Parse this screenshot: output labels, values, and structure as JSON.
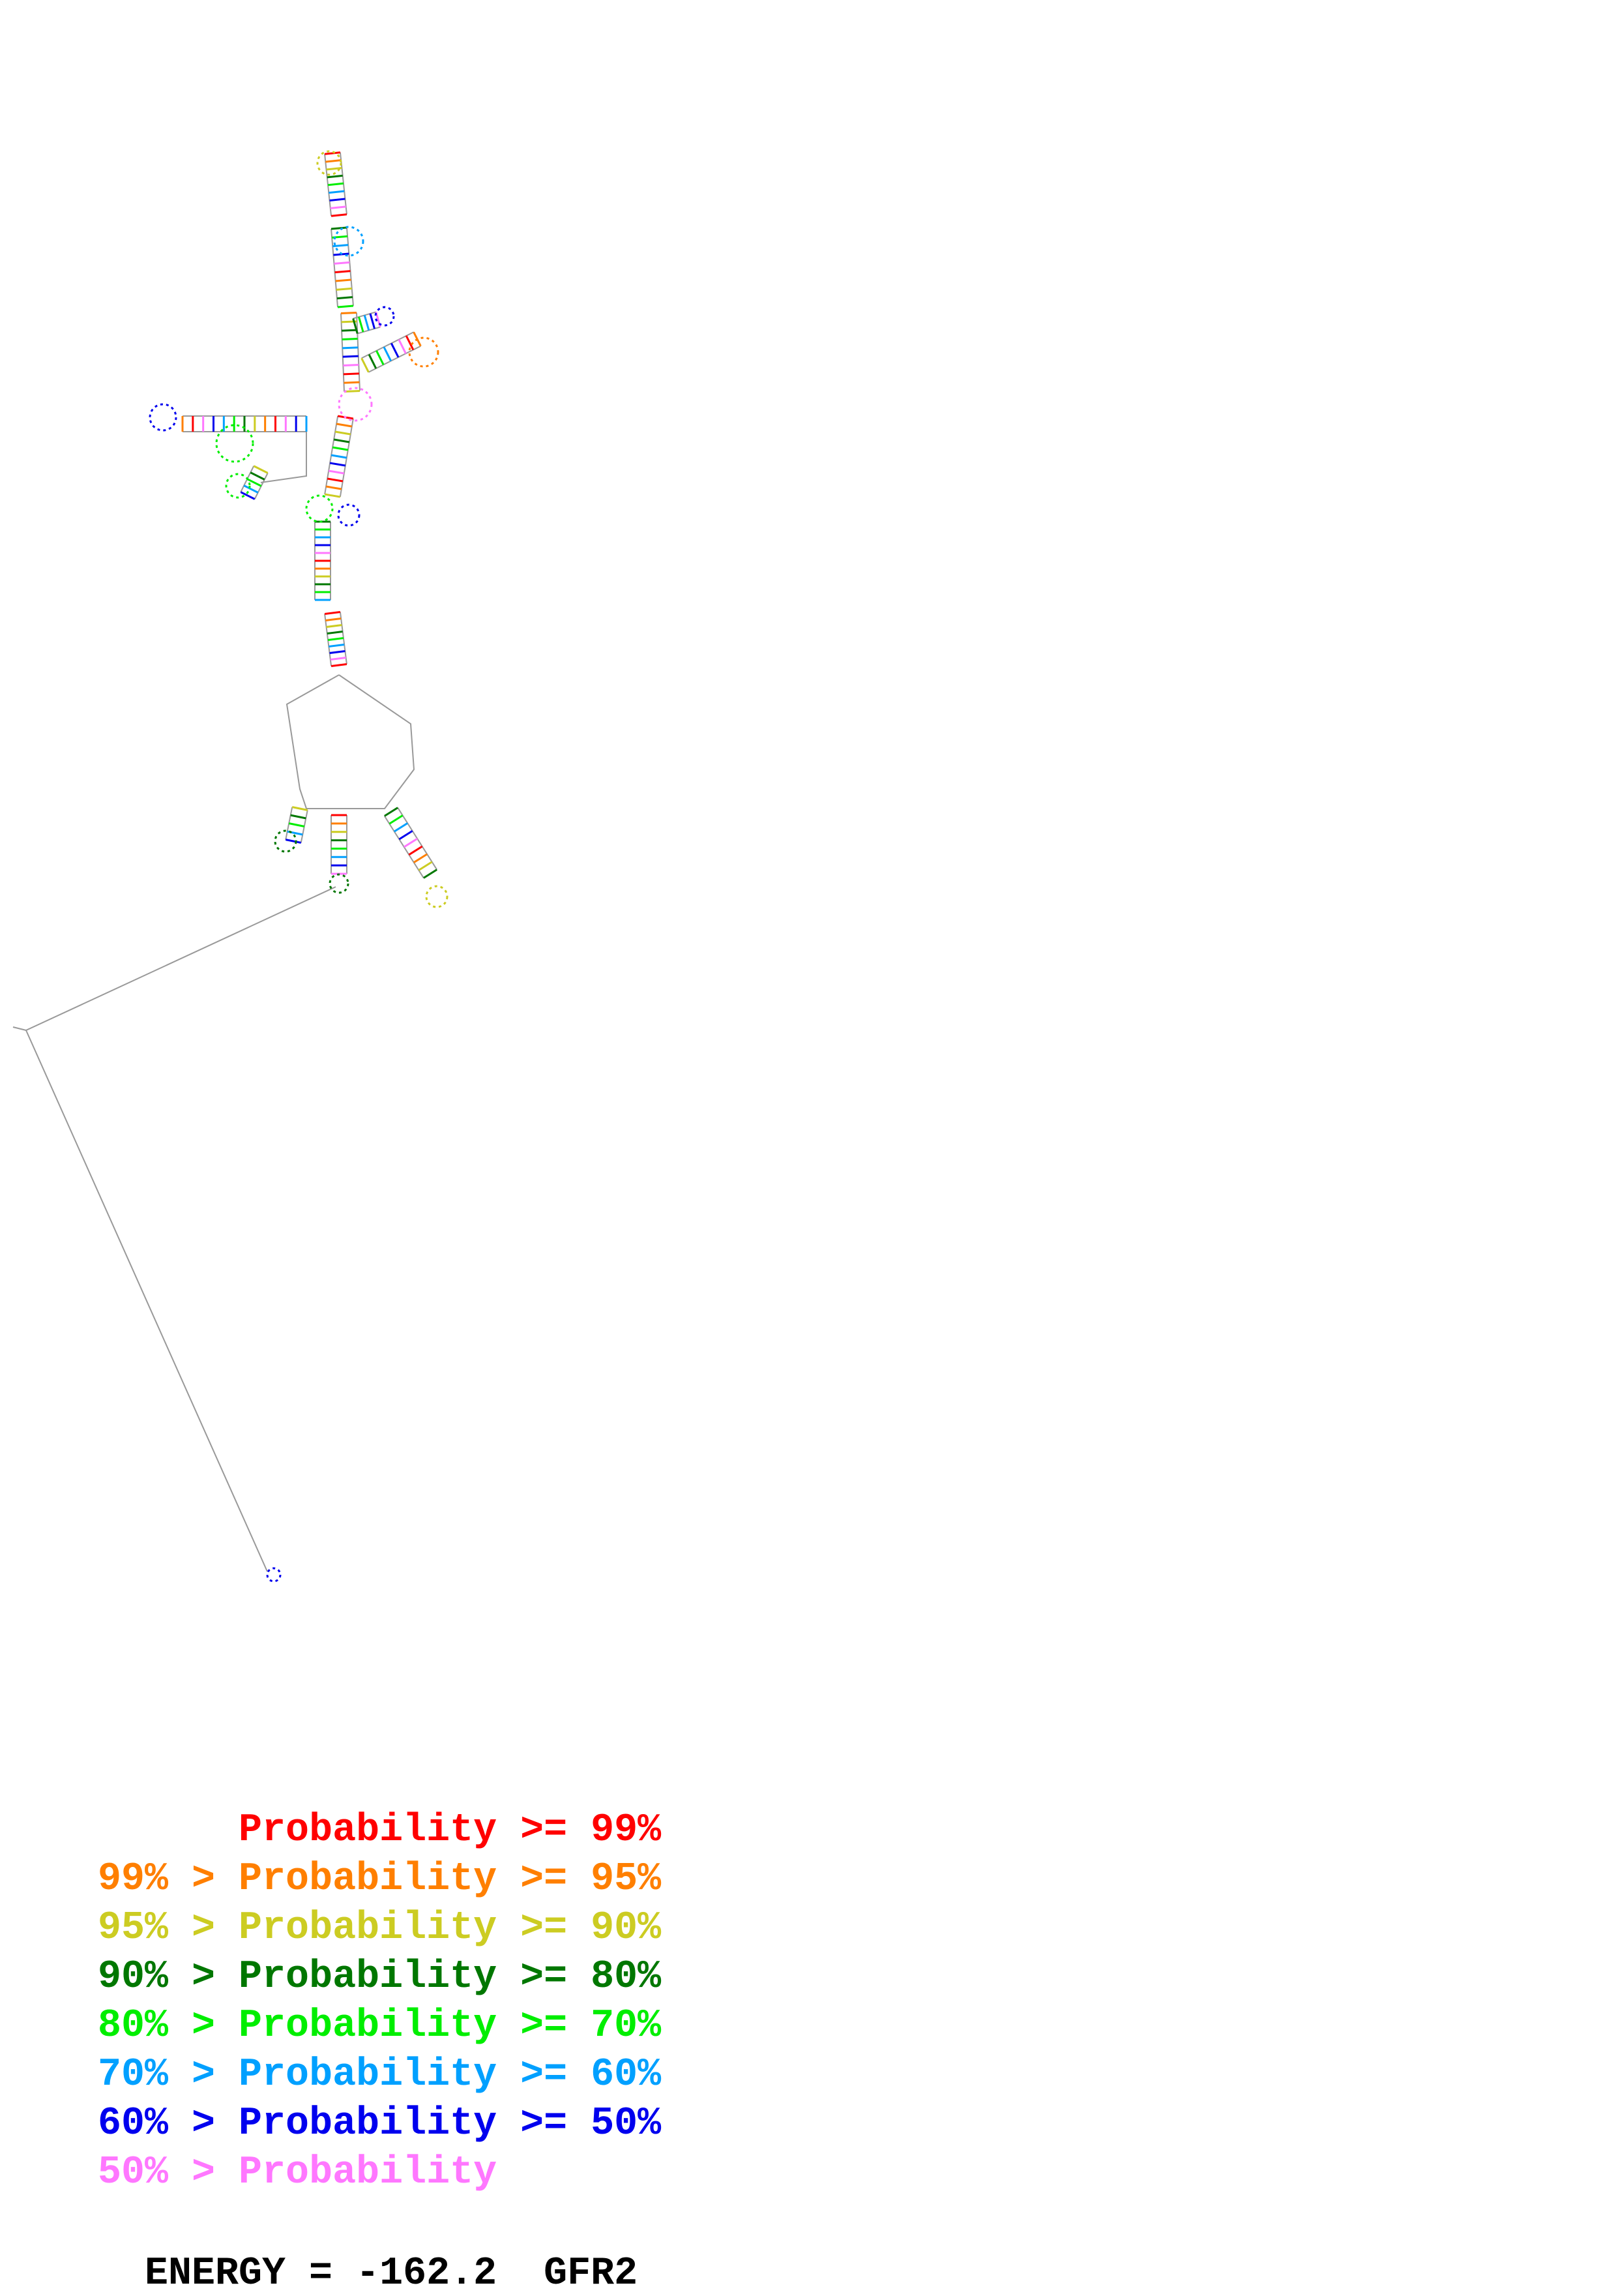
{
  "diagram": {
    "type": "rna-secondary-structure",
    "colors": {
      "p99": "#ff0000",
      "p95": "#ff7f00",
      "p90": "#cccc22",
      "p80": "#007700",
      "p70": "#00ee00",
      "p60": "#00a0ff",
      "p50": "#0000ee",
      "p0": "#ff77ff",
      "backbone": "#999999"
    }
  },
  "legend": {
    "rows": [
      {
        "prefix": "",
        "label": "Probability",
        "suffix": ">= 99%",
        "color": "#ff0000"
      },
      {
        "prefix": "99% >",
        "label": "Probability",
        "suffix": ">= 95%",
        "color": "#ff7f00"
      },
      {
        "prefix": "95% >",
        "label": "Probability",
        "suffix": ">= 90%",
        "color": "#cccc22"
      },
      {
        "prefix": "90% >",
        "label": "Probability",
        "suffix": ">= 80%",
        "color": "#007700"
      },
      {
        "prefix": "80% >",
        "label": "Probability",
        "suffix": ">= 70%",
        "color": "#00ee00"
      },
      {
        "prefix": "70% >",
        "label": "Probability",
        "suffix": ">= 60%",
        "color": "#00a0ff"
      },
      {
        "prefix": "60% >",
        "label": "Probability",
        "suffix": ">= 50%",
        "color": "#0000ee"
      },
      {
        "prefix": "50% >",
        "label": "Probability",
        "suffix": "",
        "color": "#ff77ff"
      }
    ]
  },
  "footer": {
    "energy_label": "ENERGY = -162.2",
    "sequence_name": "GFR2"
  }
}
